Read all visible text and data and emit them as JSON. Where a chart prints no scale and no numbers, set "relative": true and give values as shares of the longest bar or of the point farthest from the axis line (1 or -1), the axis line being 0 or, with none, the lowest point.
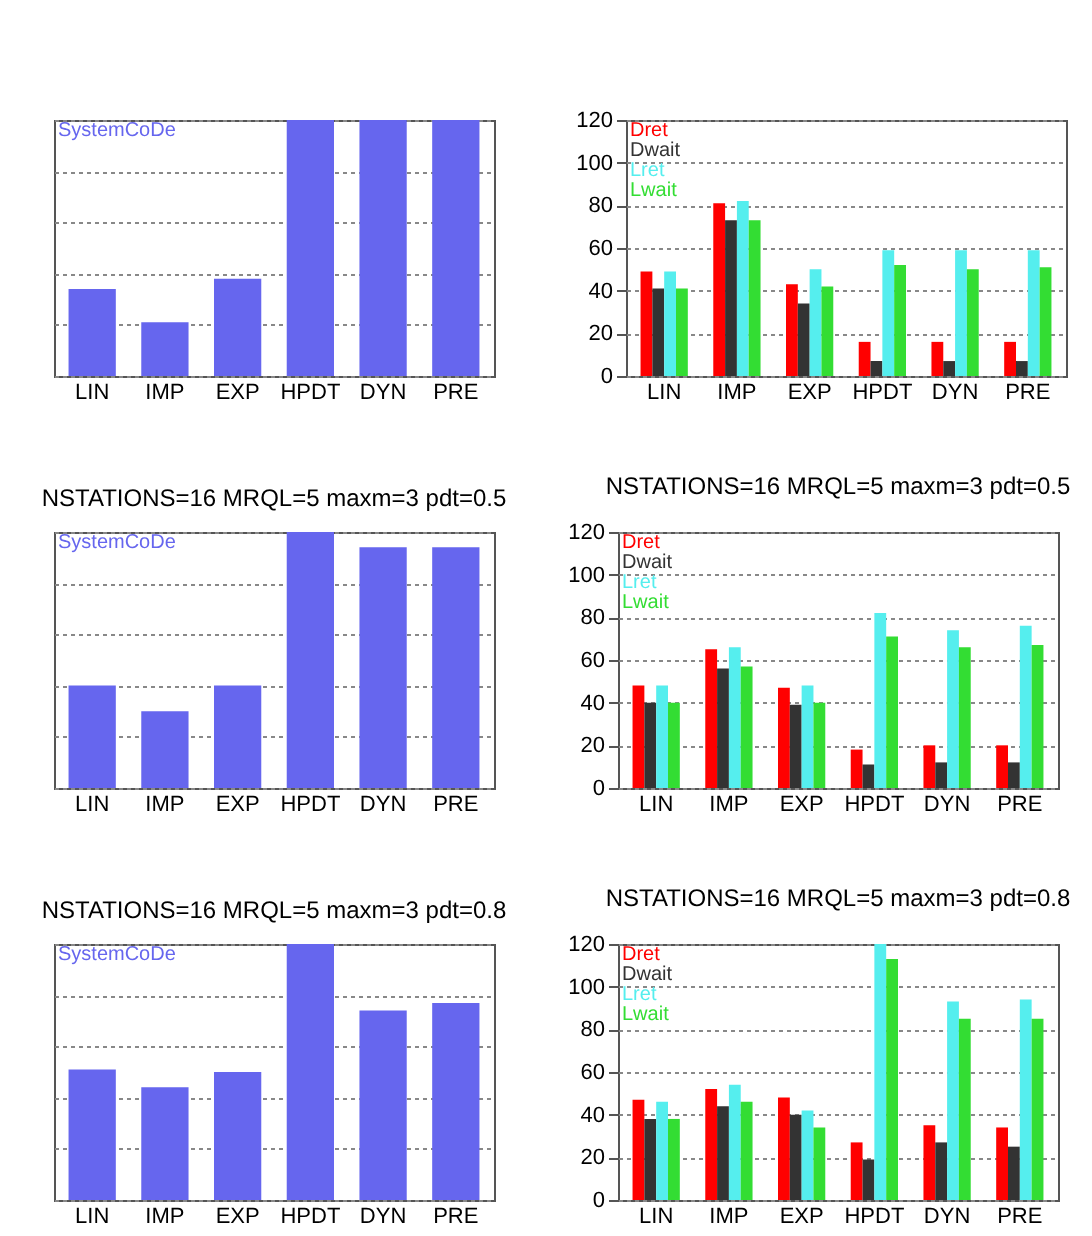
{
  "chart_data": [
    {
      "type": "bar",
      "categories": [
        "LIN",
        "IMP",
        "EXP",
        "HPDT",
        "DYN",
        "PRE"
      ],
      "relative": true,
      "grid": "y",
      "legend": "top left",
      "series": [
        {
          "name": "SystemCoDe",
          "color": "#6666ee",
          "values": [
            0.34,
            0.21,
            0.38,
            1,
            1,
            1
          ]
        }
      ]
    },
    {
      "type": "bar",
      "categories": [
        "LIN",
        "IMP",
        "EXP",
        "HPDT",
        "DYN",
        "PRE"
      ],
      "ylim": [
        0,
        120
      ],
      "yticks": [
        0,
        20,
        40,
        60,
        80,
        100,
        120
      ],
      "grid": "y",
      "legend": "top left",
      "series": [
        {
          "name": "Dret",
          "color": "#ff0000",
          "values": [
            49,
            81,
            43,
            16,
            16,
            16
          ]
        },
        {
          "name": "Dwait",
          "color": "#333333",
          "values": [
            41,
            73,
            34,
            7,
            7,
            7
          ]
        },
        {
          "name": "Lret",
          "color": "#55eeee",
          "values": [
            49,
            82,
            50,
            59,
            59,
            59
          ]
        },
        {
          "name": "Lwait",
          "color": "#33dd33",
          "values": [
            41,
            73,
            42,
            52,
            50,
            51
          ]
        }
      ]
    },
    {
      "type": "bar",
      "title": "NSTATIONS=16 MRQL=5 maxm=3 pdt=0.5",
      "categories": [
        "LIN",
        "IMP",
        "EXP",
        "HPDT",
        "DYN",
        "PRE"
      ],
      "relative": true,
      "grid": "y",
      "legend": "top left",
      "series": [
        {
          "name": "SystemCoDe",
          "color": "#6666ee",
          "values": [
            0.4,
            0.3,
            0.4,
            1,
            0.94,
            0.94
          ]
        }
      ]
    },
    {
      "type": "bar",
      "title": "NSTATIONS=16 MRQL=5 maxm=3 pdt=0.5",
      "categories": [
        "LIN",
        "IMP",
        "EXP",
        "HPDT",
        "DYN",
        "PRE"
      ],
      "ylim": [
        0,
        120
      ],
      "yticks": [
        0,
        20,
        40,
        60,
        80,
        100,
        120
      ],
      "grid": "y",
      "legend": "top left",
      "series": [
        {
          "name": "Dret",
          "color": "#ff0000",
          "values": [
            48,
            65,
            47,
            18,
            20,
            20
          ]
        },
        {
          "name": "Dwait",
          "color": "#333333",
          "values": [
            40,
            56,
            39,
            11,
            12,
            12
          ]
        },
        {
          "name": "Lret",
          "color": "#55eeee",
          "values": [
            48,
            66,
            48,
            82,
            74,
            76
          ]
        },
        {
          "name": "Lwait",
          "color": "#33dd33",
          "values": [
            40,
            57,
            40,
            71,
            66,
            67
          ]
        }
      ]
    },
    {
      "type": "bar",
      "title": "NSTATIONS=16 MRQL=5 maxm=3 pdt=0.8",
      "categories": [
        "LIN",
        "IMP",
        "EXP",
        "HPDT",
        "DYN",
        "PRE"
      ],
      "relative": true,
      "grid": "y",
      "legend": "top left",
      "series": [
        {
          "name": "SystemCoDe",
          "color": "#6666ee",
          "values": [
            0.51,
            0.44,
            0.5,
            1,
            0.74,
            0.77
          ]
        }
      ]
    },
    {
      "type": "bar",
      "title": "NSTATIONS=16 MRQL=5 maxm=3 pdt=0.8",
      "categories": [
        "LIN",
        "IMP",
        "EXP",
        "HPDT",
        "DYN",
        "PRE"
      ],
      "ylim": [
        0,
        120
      ],
      "yticks": [
        0,
        20,
        40,
        60,
        80,
        100,
        120
      ],
      "grid": "y",
      "legend": "top left",
      "series": [
        {
          "name": "Dret",
          "color": "#ff0000",
          "values": [
            47,
            52,
            48,
            27,
            35,
            34
          ]
        },
        {
          "name": "Dwait",
          "color": "#333333",
          "values": [
            38,
            44,
            40,
            19,
            27,
            25
          ]
        },
        {
          "name": "Lret",
          "color": "#55eeee",
          "values": [
            46,
            54,
            42,
            120,
            93,
            94
          ]
        },
        {
          "name": "Lwait",
          "color": "#33dd33",
          "values": [
            38,
            46,
            34,
            113,
            85,
            85
          ]
        }
      ]
    }
  ]
}
